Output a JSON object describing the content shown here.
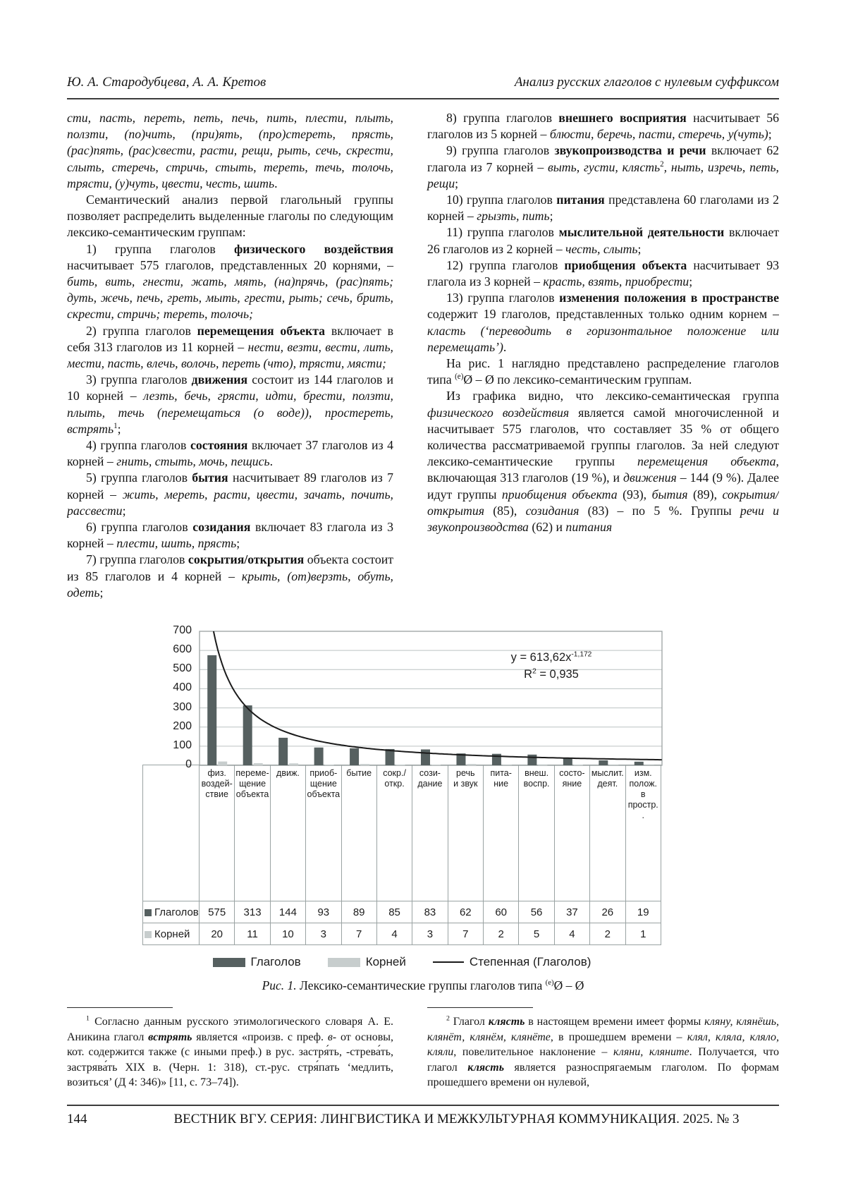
{
  "header": {
    "authors": "Ю. А. Стародубцева, А. А. Кретов",
    "running_title": "Анализ русских глаголов с нулевым суффиксом"
  },
  "body": {
    "left_paragraphs": [
      {
        "indent": false,
        "runs": [
          {
            "t": "сти, пасть, переть, петь, печь, пить, плести, плыть, ползти, (по)чить, (при)ять, (про)стереть, прясть, (рас)пять, (рас)свести, расти, рещи, рыть, сечь, скрести, слыть, стеречь, стричь, стыть, тереть, течь, толочь, трясти, (у)чуть, цвести, честь, шить",
            "s": "i"
          },
          {
            "t": ".",
            "s": ""
          }
        ]
      },
      {
        "indent": true,
        "runs": [
          {
            "t": "Семантический анализ первой глагольный группы позволяет распределить выделенные глаголы по следующим лексико-семантическим группам:",
            "s": ""
          }
        ]
      },
      {
        "indent": true,
        "runs": [
          {
            "t": "1) группа глаголов ",
            "s": ""
          },
          {
            "t": "физического воздействия",
            "s": "b"
          },
          {
            "t": " насчитывает 575 глаголов, представленных 20 корнями, – ",
            "s": ""
          },
          {
            "t": "бить, вить, гнести, жать, мять, (на)прячь, (рас)пять; дуть, жечь, печь, греть, мыть, грести, рыть; сечь, брить, скрести, стричь; тереть, толочь;",
            "s": "i"
          }
        ]
      },
      {
        "indent": true,
        "runs": [
          {
            "t": "2) группа глаголов ",
            "s": ""
          },
          {
            "t": "перемещения объекта",
            "s": "b"
          },
          {
            "t": " включает в себя 313 глаголов из 11 корней – ",
            "s": ""
          },
          {
            "t": "нести, везти, вести, лить, мести, пасть, влечь, волочь, переть (что), трясти, мясти;",
            "s": "i"
          }
        ]
      },
      {
        "indent": true,
        "runs": [
          {
            "t": "3) группа глаголов ",
            "s": ""
          },
          {
            "t": "движения",
            "s": "b"
          },
          {
            "t": " состоит из 144 глаголов и 10 корней – ",
            "s": ""
          },
          {
            "t": "лезть, бечь, грясти, идти, брести, ползти, плыть, течь (перемещаться (о воде)), простереть, встрять",
            "s": "i"
          },
          {
            "t": "1",
            "s": "sup"
          },
          {
            "t": ";",
            "s": ""
          }
        ]
      },
      {
        "indent": true,
        "runs": [
          {
            "t": "4) группа глаголов ",
            "s": ""
          },
          {
            "t": "состояния",
            "s": "b"
          },
          {
            "t": " включает 37 глаголов из 4 корней – ",
            "s": ""
          },
          {
            "t": "гнить, стыть, мочь, пещись",
            "s": "i"
          },
          {
            "t": ".",
            "s": ""
          }
        ]
      },
      {
        "indent": true,
        "runs": [
          {
            "t": "5) группа глаголов ",
            "s": ""
          },
          {
            "t": "бытия",
            "s": "b"
          },
          {
            "t": " насчитывает 89 глаголов из 7 корней – ",
            "s": ""
          },
          {
            "t": "жить, мереть, расти, цвести, зачать, почить, рассвести",
            "s": "i"
          },
          {
            "t": ";",
            "s": ""
          }
        ]
      },
      {
        "indent": true,
        "runs": [
          {
            "t": "6) группа глаголов ",
            "s": ""
          },
          {
            "t": "созидания",
            "s": "b"
          },
          {
            "t": " включает 83 глагола из 3 корней – ",
            "s": ""
          },
          {
            "t": "плести, шить, прясть",
            "s": "i"
          },
          {
            "t": ";",
            "s": ""
          }
        ]
      },
      {
        "indent": true,
        "runs": [
          {
            "t": "7) группа глаголов ",
            "s": ""
          },
          {
            "t": "сокрытия/открытия",
            "s": "b"
          },
          {
            "t": " объекта состоит из 85 глаголов и 4 корней – ",
            "s": ""
          },
          {
            "t": "крыть, (от)верзть, обуть, одеть",
            "s": "i"
          },
          {
            "t": ";",
            "s": ""
          }
        ]
      }
    ],
    "right_paragraphs": [
      {
        "indent": true,
        "runs": [
          {
            "t": "8) группа глаголов ",
            "s": ""
          },
          {
            "t": "внешнего восприятия",
            "s": "b"
          },
          {
            "t": " насчитывает 56 глаголов из 5 корней – ",
            "s": ""
          },
          {
            "t": "блюсти, беречь, пасти, стеречь, у(чуть)",
            "s": "i"
          },
          {
            "t": ";",
            "s": ""
          }
        ]
      },
      {
        "indent": true,
        "runs": [
          {
            "t": "9) группа глаголов ",
            "s": ""
          },
          {
            "t": "звукопроизводства и речи",
            "s": "b"
          },
          {
            "t": " включает 62 глагола из 7 корней – ",
            "s": ""
          },
          {
            "t": "выть, густи, клясть",
            "s": "i"
          },
          {
            "t": "2",
            "s": "sup"
          },
          {
            "t": ", ныть, изречь, петь, рещи",
            "s": "i"
          },
          {
            "t": ";",
            "s": ""
          }
        ]
      },
      {
        "indent": true,
        "runs": [
          {
            "t": "10) группа глаголов ",
            "s": ""
          },
          {
            "t": "питания",
            "s": "b"
          },
          {
            "t": " представлена 60 глаголами из 2 корней – ",
            "s": ""
          },
          {
            "t": "грызть, пить",
            "s": "i"
          },
          {
            "t": ";",
            "s": ""
          }
        ]
      },
      {
        "indent": true,
        "runs": [
          {
            "t": "11) группа глаголов ",
            "s": ""
          },
          {
            "t": "мыслительной деятельности",
            "s": "b"
          },
          {
            "t": " включает 26 глаголов из 2 корней – ",
            "s": ""
          },
          {
            "t": "честь, слыть",
            "s": "i"
          },
          {
            "t": ";",
            "s": ""
          }
        ]
      },
      {
        "indent": true,
        "runs": [
          {
            "t": "12) группа глаголов ",
            "s": ""
          },
          {
            "t": "приобщения объекта",
            "s": "b"
          },
          {
            "t": " насчитывает 93 глагола из 3 корней – ",
            "s": ""
          },
          {
            "t": "красть, взять, приобрести",
            "s": "i"
          },
          {
            "t": ";",
            "s": ""
          }
        ]
      },
      {
        "indent": true,
        "runs": [
          {
            "t": "13) группа глаголов ",
            "s": ""
          },
          {
            "t": "изменения положения в пространстве",
            "s": "b"
          },
          {
            "t": " содержит 19 глаголов, представленных только одним корнем – ",
            "s": ""
          },
          {
            "t": "класть (‘переводить в горизонтальное положение или перемещать’)",
            "s": "i"
          },
          {
            "t": ".",
            "s": ""
          }
        ]
      },
      {
        "indent": true,
        "runs": [
          {
            "t": "На рис. 1 наглядно представлено распределение глаголов типа ",
            "s": ""
          },
          {
            "t": "(е)",
            "s": "sup"
          },
          {
            "t": "Ø – Ø по лексико-семантическим группам.",
            "s": ""
          }
        ]
      },
      {
        "indent": true,
        "runs": [
          {
            "t": "Из графика видно, что лексико-семантическая группа ",
            "s": ""
          },
          {
            "t": "физического воздействия",
            "s": "i"
          },
          {
            "t": " является самой многочисленной и насчитывает 575 глаголов, что составляет 35 % от общего количества рассматриваемой группы глаголов. За ней следуют лексико-семантические группы ",
            "s": ""
          },
          {
            "t": "перемещения объекта",
            "s": "i"
          },
          {
            "t": ", включающая 313 глаголов (19 %), и ",
            "s": ""
          },
          {
            "t": "движения",
            "s": "i"
          },
          {
            "t": " – 144 (9 %). Далее идут группы ",
            "s": ""
          },
          {
            "t": "приобщения объекта",
            "s": "i"
          },
          {
            "t": " (93), ",
            "s": ""
          },
          {
            "t": "бытия",
            "s": "i"
          },
          {
            "t": " (89), ",
            "s": ""
          },
          {
            "t": "сокрытия/открытия",
            "s": "i"
          },
          {
            "t": " (85), ",
            "s": ""
          },
          {
            "t": "созидания",
            "s": "i"
          },
          {
            "t": " (83) – по 5 %. Группы ",
            "s": ""
          },
          {
            "t": "речи и звукопроизводства",
            "s": "i"
          },
          {
            "t": " (62) и ",
            "s": ""
          },
          {
            "t": "питания",
            "s": "i"
          }
        ]
      }
    ]
  },
  "chart_data": {
    "type": "bar",
    "title": "",
    "categories": [
      "физ.\nвоздей-\nствие",
      "переме-\nщение\nобъекта",
      "движ.",
      "приоб-\nщение\nобъекта",
      "бытие",
      "сокр./\nоткр.",
      "сози-\nдание",
      "речь\nи звук",
      "пита-\nние",
      "внеш.\nвоспр.",
      "состо-\nяние",
      "мыслит.\nдеят.",
      "изм.\nполож.\nв\nпростр.\n."
    ],
    "series": [
      {
        "name": "Глаголов",
        "color": "#566060",
        "values": [
          575,
          313,
          144,
          93,
          89,
          85,
          83,
          62,
          60,
          56,
          37,
          26,
          19
        ]
      },
      {
        "name": "Корней",
        "color": "#c7cdcd",
        "values": [
          20,
          11,
          10,
          3,
          7,
          4,
          3,
          7,
          2,
          5,
          4,
          2,
          1
        ]
      }
    ],
    "trendline": {
      "name": "Степенная (Глаголов)",
      "a": 613.62,
      "b": -1.172,
      "eq_base": "y = 613,62x",
      "eq_sup": "-1,172",
      "r2_base": "R",
      "r2_sup": "2",
      "r2_rest": " = 0,935",
      "color": "#1a1a1a"
    },
    "ylim": [
      0,
      700
    ],
    "ytick_step": 100,
    "grid": true,
    "legend_position": "bottom",
    "xlabel": "",
    "ylabel": ""
  },
  "figure_caption": {
    "runs": [
      {
        "t": "Рис. 1.",
        "s": "i"
      },
      {
        "t": " Лексико-семантические группы глаголов типа ",
        "s": ""
      },
      {
        "t": "(е)",
        "s": "sup"
      },
      {
        "t": "Ø – Ø",
        "s": ""
      }
    ]
  },
  "footnotes": {
    "left": {
      "runs": [
        {
          "t": "1",
          "s": "sup"
        },
        {
          "t": " Согласно данным русского этимологического словаря А. Е. Аникина глагол ",
          "s": ""
        },
        {
          "t": "встрять",
          "s": "bi"
        },
        {
          "t": " является «произв. с преф. ",
          "s": ""
        },
        {
          "t": "в-",
          "s": "i"
        },
        {
          "t": " от основы, кот. содержится также (с иными преф.) в рус. застря́ть, -стрева́ть, застрява́ть XIX в. (Черн. 1: 318), ст.-рус. стря́пать ‘медлить, возиться’ (Д 4: 346)» [11, с. 73–74]).",
          "s": ""
        }
      ]
    },
    "right": {
      "runs": [
        {
          "t": "2",
          "s": "sup"
        },
        {
          "t": " Глагол ",
          "s": ""
        },
        {
          "t": "клясть",
          "s": "bi"
        },
        {
          "t": " в настоящем времени имеет формы ",
          "s": ""
        },
        {
          "t": "кляну, клянёшь, клянёт, клянём, клянёте",
          "s": "i"
        },
        {
          "t": ", в прошедшем времени – ",
          "s": ""
        },
        {
          "t": "клял, кляла, кляло, кляли",
          "s": "i"
        },
        {
          "t": ", повелительное наклонение – ",
          "s": ""
        },
        {
          "t": "кляни, кляните",
          "s": "i"
        },
        {
          "t": ". Получается, что глагол ",
          "s": ""
        },
        {
          "t": "клясть",
          "s": "bi"
        },
        {
          "t": " является разноспрягаемым глаголом. По формам прошедшего времени он нулевой,",
          "s": ""
        }
      ]
    }
  },
  "footer": {
    "page_number": "144",
    "journal_line": "ВЕСТНИК ВГУ. СЕРИЯ: ЛИНГВИСТИКА И МЕЖКУЛЬТУРНАЯ КОММУНИКАЦИЯ. 2025. № 3"
  }
}
